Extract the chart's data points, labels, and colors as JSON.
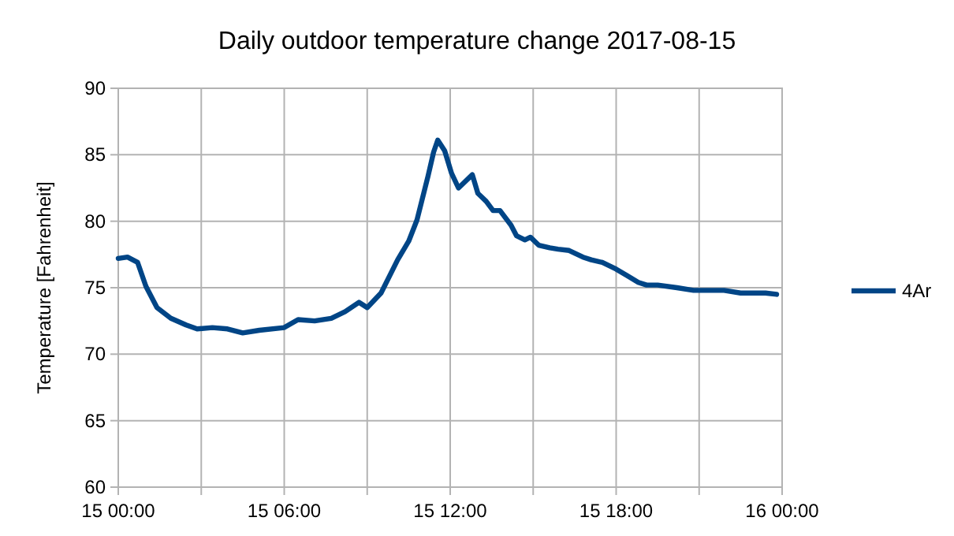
{
  "chart_data": {
    "type": "line",
    "title": "Daily outdoor temperature change 2017-08-15",
    "ylabel": "Temperature [Fahrenheit]",
    "x": [
      "2017-08-15T00:00",
      "2017-08-15T00:20",
      "2017-08-15T00:42",
      "2017-08-15T01:00",
      "2017-08-15T01:24",
      "2017-08-15T01:54",
      "2017-08-15T02:27",
      "2017-08-15T02:51",
      "2017-08-15T03:24",
      "2017-08-15T03:57",
      "2017-08-15T04:30",
      "2017-08-15T05:06",
      "2017-08-15T06:00",
      "2017-08-15T06:30",
      "2017-08-15T07:06",
      "2017-08-15T07:42",
      "2017-08-15T08:12",
      "2017-08-15T08:42",
      "2017-08-15T09:00",
      "2017-08-15T09:30",
      "2017-08-15T10:06",
      "2017-08-15T10:30",
      "2017-08-15T10:48",
      "2017-08-15T11:12",
      "2017-08-15T11:24",
      "2017-08-15T11:33",
      "2017-08-15T11:48",
      "2017-08-15T12:03",
      "2017-08-15T12:18",
      "2017-08-15T12:48",
      "2017-08-15T13:00",
      "2017-08-15T13:18",
      "2017-08-15T13:33",
      "2017-08-15T13:48",
      "2017-08-15T14:12",
      "2017-08-15T14:24",
      "2017-08-15T14:42",
      "2017-08-15T14:54",
      "2017-08-15T15:12",
      "2017-08-15T15:36",
      "2017-08-15T15:54",
      "2017-08-15T16:18",
      "2017-08-15T16:48",
      "2017-08-15T17:06",
      "2017-08-15T17:30",
      "2017-08-15T18:00",
      "2017-08-15T18:24",
      "2017-08-15T18:48",
      "2017-08-15T19:06",
      "2017-08-15T19:30",
      "2017-08-15T20:12",
      "2017-08-15T20:48",
      "2017-08-15T21:54",
      "2017-08-15T22:30",
      "2017-08-15T23:24",
      "2017-08-15T23:48"
    ],
    "series": [
      {
        "name": "4Ar",
        "color": "#004586",
        "values": [
          77.2,
          77.3,
          76.9,
          75.1,
          73.5,
          72.7,
          72.2,
          71.9,
          72.0,
          71.9,
          71.6,
          71.8,
          72.0,
          72.6,
          72.5,
          72.7,
          73.2,
          73.9,
          73.5,
          74.6,
          77.1,
          78.5,
          80.1,
          83.4,
          85.2,
          86.1,
          85.3,
          83.6,
          82.5,
          83.5,
          82.1,
          81.5,
          80.8,
          80.8,
          79.7,
          78.9,
          78.6,
          78.8,
          78.2,
          78.0,
          77.9,
          77.8,
          77.3,
          77.1,
          76.9,
          76.4,
          75.9,
          75.4,
          75.2,
          75.2,
          75.0,
          74.8,
          74.8,
          74.6,
          74.6,
          74.5
        ]
      }
    ],
    "xlim": [
      "2017-08-15T00:00",
      "2017-08-16T00:00"
    ],
    "xticks": [
      {
        "value": "2017-08-15T00:00",
        "label": "15 00:00"
      },
      {
        "value": "2017-08-15T03:00",
        "label": null
      },
      {
        "value": "2017-08-15T06:00",
        "label": "15 06:00"
      },
      {
        "value": "2017-08-15T09:00",
        "label": null
      },
      {
        "value": "2017-08-15T12:00",
        "label": "15 12:00"
      },
      {
        "value": "2017-08-15T15:00",
        "label": null
      },
      {
        "value": "2017-08-15T18:00",
        "label": "15 18:00"
      },
      {
        "value": "2017-08-15T21:00",
        "label": null
      },
      {
        "value": "2017-08-16T00:00",
        "label": "16 00:00"
      }
    ],
    "ylim": [
      60,
      90
    ],
    "yticks": [
      60,
      65,
      70,
      75,
      80,
      85,
      90
    ],
    "grid": true,
    "legend": "right",
    "marker": "none",
    "line_style": "solid"
  }
}
